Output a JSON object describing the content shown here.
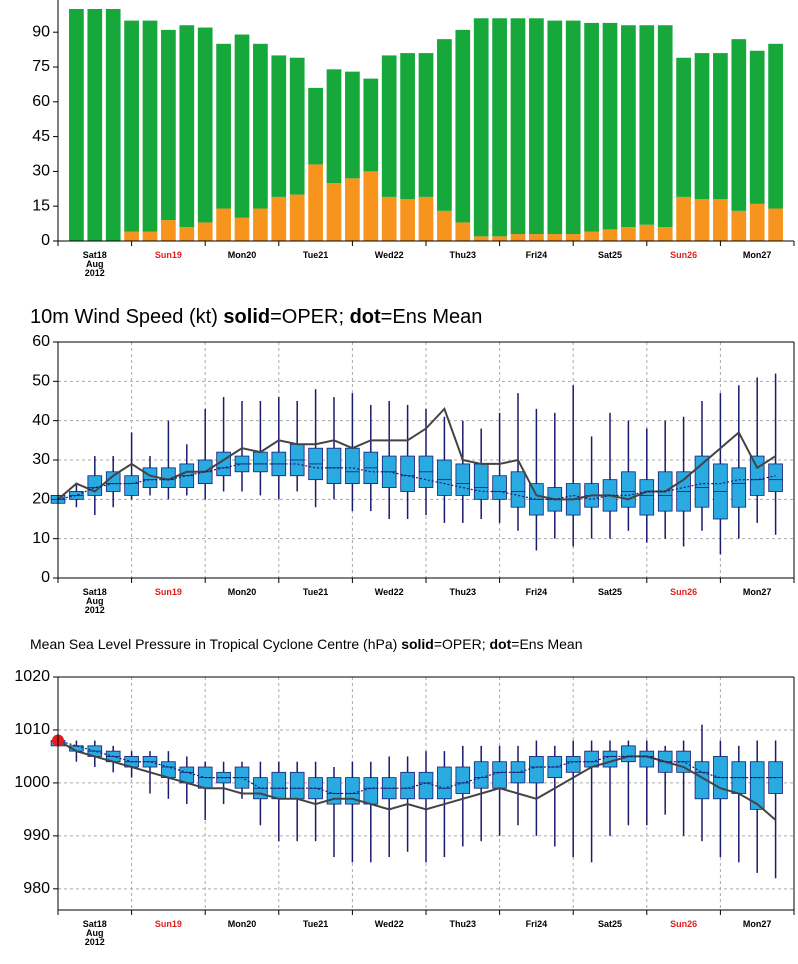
{
  "chart_data": [
    {
      "type": "bar",
      "stacked": true,
      "grid": false,
      "categories": [
        null,
        "Sat18\nAug\n2012",
        null,
        null,
        null,
        "Sun19",
        null,
        null,
        null,
        "Mon20",
        null,
        null,
        null,
        "Tue21",
        null,
        null,
        null,
        "Wed22",
        null,
        null,
        null,
        "Thu23",
        null,
        null,
        null,
        "Fri24",
        null,
        null,
        null,
        "Sat25",
        null,
        null,
        null,
        "Sun26",
        null,
        null,
        null,
        "Mon27",
        null
      ],
      "tick_label_colors": [
        null,
        "#000000",
        null,
        null,
        null,
        "#e0201f",
        null,
        null,
        null,
        "#000000",
        null,
        null,
        null,
        "#000000",
        null,
        null,
        null,
        "#000000",
        null,
        null,
        null,
        "#000000",
        null,
        null,
        null,
        "#000000",
        null,
        null,
        null,
        "#000000",
        null,
        null,
        null,
        "#e0201f",
        null,
        null,
        null,
        "#000000",
        null
      ],
      "series": [
        {
          "color": "#f7941d",
          "values": [
            0,
            0,
            0,
            4,
            4,
            9,
            6,
            8,
            14,
            10,
            14,
            19,
            20,
            33,
            25,
            27,
            30,
            19,
            18,
            19,
            13,
            8,
            2,
            2,
            3,
            3,
            3,
            3,
            4,
            5,
            6,
            7,
            6,
            19,
            18,
            18,
            13,
            16,
            14
          ]
        },
        {
          "color": "#17a83c",
          "values": [
            100,
            100,
            100,
            91,
            91,
            82,
            87,
            84,
            71,
            79,
            71,
            61,
            59,
            33,
            49,
            46,
            40,
            61,
            63,
            62,
            74,
            83,
            94,
            94,
            93,
            93,
            92,
            92,
            90,
            89,
            87,
            86,
            87,
            60,
            63,
            63,
            74,
            66,
            71
          ]
        }
      ],
      "ylim": [
        0,
        100
      ],
      "yticks": [
        0,
        15,
        30,
        45,
        60,
        75,
        90
      ]
    },
    {
      "type": "box",
      "grid": true,
      "title": [
        "10m Wind Speed (kt) ",
        "solid",
        "=OPER; ",
        "dot",
        "=Ens Mean"
      ],
      "title_bold": [
        false,
        true,
        false,
        true,
        false
      ],
      "categories": [
        null,
        null,
        "Sat18\nAug\n2012",
        null,
        null,
        null,
        "Sun19",
        null,
        null,
        null,
        "Mon20",
        null,
        null,
        null,
        "Tue21",
        null,
        null,
        null,
        "Wed22",
        null,
        null,
        null,
        "Thu23",
        null,
        null,
        null,
        "Fri24",
        null,
        null,
        null,
        "Sat25",
        null,
        null,
        null,
        "Sun26",
        null,
        null,
        null,
        "Mon27",
        null
      ],
      "tick_label_colors": [
        null,
        null,
        "#000000",
        null,
        null,
        null,
        "#e0201f",
        null,
        null,
        null,
        "#000000",
        null,
        null,
        null,
        "#000000",
        null,
        null,
        null,
        "#000000",
        null,
        null,
        null,
        "#000000",
        null,
        null,
        null,
        "#000000",
        null,
        null,
        null,
        "#000000",
        null,
        null,
        null,
        "#e0201f",
        null,
        null,
        null,
        "#000000",
        null
      ],
      "box_color": "#29abe2",
      "whisker_color": "#1a1a6e",
      "boxes": [
        [
          19,
          19,
          20,
          21,
          21
        ],
        [
          18,
          20,
          21,
          22,
          24
        ],
        [
          16,
          21,
          23,
          26,
          31
        ],
        [
          18,
          22,
          24,
          27,
          31
        ],
        [
          20,
          21,
          24,
          26,
          37
        ],
        [
          21,
          23,
          25,
          28,
          31
        ],
        [
          20,
          23,
          25,
          28,
          40
        ],
        [
          21,
          23,
          26,
          29,
          34
        ],
        [
          20,
          24,
          27,
          30,
          43
        ],
        [
          22,
          26,
          28,
          32,
          46
        ],
        [
          22,
          27,
          29,
          31,
          45
        ],
        [
          21,
          27,
          29,
          32,
          45
        ],
        [
          20,
          26,
          29,
          32,
          46
        ],
        [
          22,
          26,
          30,
          34,
          45
        ],
        [
          18,
          25,
          29,
          33,
          48
        ],
        [
          20,
          24,
          28,
          33,
          46
        ],
        [
          17,
          24,
          27,
          33,
          47
        ],
        [
          17,
          24,
          28,
          32,
          44
        ],
        [
          15,
          23,
          27,
          31,
          45
        ],
        [
          15,
          22,
          26,
          31,
          44
        ],
        [
          16,
          23,
          27,
          31,
          43
        ],
        [
          14,
          21,
          25,
          30,
          41
        ],
        [
          14,
          21,
          24,
          29,
          40
        ],
        [
          15,
          20,
          23,
          29,
          38
        ],
        [
          14,
          20,
          22,
          26,
          42
        ],
        [
          12,
          18,
          22,
          27,
          47
        ],
        [
          7,
          16,
          20,
          24,
          43
        ],
        [
          10,
          17,
          20,
          23,
          42
        ],
        [
          8,
          16,
          20,
          24,
          49
        ],
        [
          10,
          18,
          21,
          24,
          36
        ],
        [
          10,
          17,
          21,
          25,
          42
        ],
        [
          12,
          18,
          22,
          27,
          40
        ],
        [
          9,
          16,
          21,
          25,
          38
        ],
        [
          10,
          17,
          21,
          27,
          40
        ],
        [
          8,
          17,
          22,
          27,
          41
        ],
        [
          12,
          18,
          23,
          31,
          45
        ],
        [
          6,
          15,
          22,
          29,
          47
        ],
        [
          10,
          18,
          24,
          28,
          49
        ],
        [
          14,
          21,
          25,
          31,
          51
        ],
        [
          11,
          22,
          25,
          29,
          52
        ]
      ],
      "lines": [
        {
          "style": "solid",
          "color": "#444444",
          "values": [
            20,
            24,
            22,
            26,
            29,
            26,
            25,
            27,
            27,
            30,
            33,
            32,
            35,
            34,
            34,
            35,
            33,
            35,
            35,
            35,
            38,
            43,
            30,
            29,
            29,
            30,
            21,
            20,
            20,
            21,
            21,
            20,
            22,
            22,
            25,
            29,
            33,
            37,
            28,
            31
          ]
        },
        {
          "style": "dotted",
          "color": "#1a1a6e",
          "values": [
            20,
            21,
            23,
            24,
            24,
            25,
            25,
            26,
            27,
            28,
            29,
            29,
            29,
            29,
            28,
            28,
            28,
            27,
            27,
            26,
            25,
            24,
            23,
            22,
            22,
            21,
            20,
            20,
            21,
            20,
            21,
            21,
            22,
            22,
            23,
            24,
            24,
            25,
            25,
            26
          ]
        }
      ],
      "ylim": [
        0,
        60
      ],
      "yticks": [
        0,
        10,
        20,
        30,
        40,
        50,
        60
      ]
    },
    {
      "type": "box",
      "grid": true,
      "title": [
        "Mean Sea Level Pressure in Tropical Cyclone Centre (hPa) ",
        "solid",
        "=OPER; ",
        "dot",
        "=Ens Mean"
      ],
      "title_bold": [
        false,
        true,
        false,
        true,
        false
      ],
      "categories": [
        null,
        null,
        "Sat18\nAug\n2012",
        null,
        null,
        null,
        "Sun19",
        null,
        null,
        null,
        "Mon20",
        null,
        null,
        null,
        "Tue21",
        null,
        null,
        null,
        "Wed22",
        null,
        null,
        null,
        "Thu23",
        null,
        null,
        null,
        "Fri24",
        null,
        null,
        null,
        "Sat25",
        null,
        null,
        null,
        "Sun26",
        null,
        null,
        null,
        "Mon27",
        null
      ],
      "tick_label_colors": [
        null,
        null,
        "#000000",
        null,
        null,
        null,
        "#e0201f",
        null,
        null,
        null,
        "#000000",
        null,
        null,
        null,
        "#000000",
        null,
        null,
        null,
        "#000000",
        null,
        null,
        null,
        "#000000",
        null,
        null,
        null,
        "#000000",
        null,
        null,
        null,
        "#000000",
        null,
        null,
        null,
        "#e0201f",
        null,
        null,
        null,
        "#000000",
        null
      ],
      "box_color": "#29abe2",
      "whisker_color": "#1a1a6e",
      "boxes": [
        [
          1007,
          1007,
          1008,
          1008,
          1009
        ],
        [
          1004,
          1006,
          1007,
          1007,
          1008
        ],
        [
          1003,
          1005,
          1006,
          1007,
          1008
        ],
        [
          1002,
          1004,
          1005,
          1006,
          1007
        ],
        [
          1001,
          1003,
          1004,
          1005,
          1006
        ],
        [
          998,
          1003,
          1004,
          1005,
          1006
        ],
        [
          997,
          1001,
          1003,
          1004,
          1006
        ],
        [
          996,
          1000,
          1002,
          1003,
          1005
        ],
        [
          993,
          999,
          1001,
          1003,
          1004
        ],
        [
          996,
          1000,
          1001,
          1002,
          1004
        ],
        [
          997,
          999,
          1001,
          1003,
          1004
        ],
        [
          992,
          997,
          999,
          1001,
          1004
        ],
        [
          989,
          997,
          999,
          1002,
          1004
        ],
        [
          989,
          997,
          999,
          1002,
          1004
        ],
        [
          989,
          997,
          999,
          1001,
          1004
        ],
        [
          986,
          996,
          998,
          1001,
          1003
        ],
        [
          985,
          996,
          998,
          1001,
          1004
        ],
        [
          985,
          996,
          999,
          1001,
          1004
        ],
        [
          986,
          997,
          999,
          1001,
          1005
        ],
        [
          987,
          997,
          999,
          1002,
          1005
        ],
        [
          985,
          997,
          1000,
          1002,
          1006
        ],
        [
          986,
          997,
          999,
          1003,
          1006
        ],
        [
          988,
          998,
          1000,
          1003,
          1007
        ],
        [
          989,
          999,
          1001,
          1004,
          1007
        ],
        [
          990,
          999,
          1002,
          1004,
          1007
        ],
        [
          992,
          1000,
          1002,
          1004,
          1007
        ],
        [
          990,
          1000,
          1003,
          1005,
          1008
        ],
        [
          988,
          1001,
          1003,
          1005,
          1007
        ],
        [
          986,
          1002,
          1004,
          1005,
          1008
        ],
        [
          985,
          1003,
          1004,
          1006,
          1008
        ],
        [
          990,
          1003,
          1005,
          1006,
          1008
        ],
        [
          992,
          1004,
          1005,
          1007,
          1008
        ],
        [
          992,
          1003,
          1005,
          1006,
          1008
        ],
        [
          994,
          1002,
          1004,
          1006,
          1007
        ],
        [
          990,
          1002,
          1004,
          1006,
          1008
        ],
        [
          989,
          997,
          1002,
          1004,
          1011
        ],
        [
          986,
          997,
          1001,
          1005,
          1008
        ],
        [
          985,
          998,
          1001,
          1004,
          1007
        ],
        [
          983,
          995,
          1001,
          1004,
          1008
        ],
        [
          982,
          998,
          1001,
          1004,
          1008
        ]
      ],
      "lines": [
        {
          "style": "solid",
          "color": "#444444",
          "values": [
            1008,
            1006,
            1005,
            1004,
            1003,
            1002,
            1001,
            1000,
            999,
            999,
            998,
            998,
            997,
            997,
            996,
            997,
            997,
            996,
            995,
            996,
            995,
            996,
            997,
            998,
            999,
            998,
            997,
            999,
            1001,
            1003,
            1004,
            1005,
            1005,
            1004,
            1003,
            1001,
            999,
            998,
            996,
            993
          ]
        },
        {
          "style": "dotted",
          "color": "#1a1a6e",
          "values": [
            1008,
            1007,
            1006,
            1005,
            1004,
            1004,
            1003,
            1002,
            1001,
            1001,
            1001,
            999,
            999,
            999,
            999,
            998,
            998,
            999,
            999,
            999,
            1000,
            999,
            1000,
            1001,
            1002,
            1002,
            1003,
            1003,
            1004,
            1004,
            1005,
            1005,
            1005,
            1004,
            1004,
            1002,
            1001,
            1001,
            1001,
            1001
          ]
        }
      ],
      "analysis_value": 1008,
      "analysis_color": "#e0201f",
      "ylim": [
        976,
        1020
      ],
      "yticks": [
        980,
        990,
        1000,
        1010,
        1020
      ]
    }
  ]
}
